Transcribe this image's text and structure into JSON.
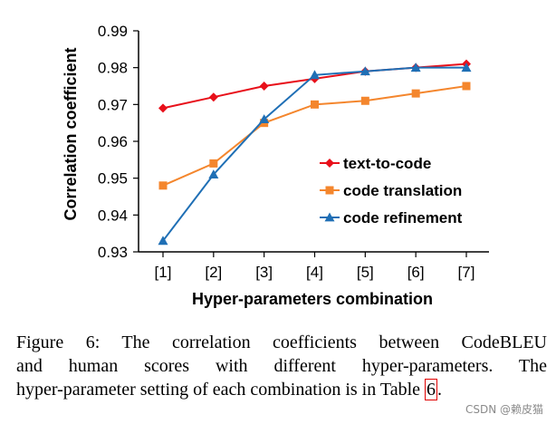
{
  "chart_data": {
    "type": "line",
    "categories": [
      "[1]",
      "[2]",
      "[3]",
      "[4]",
      "[5]",
      "[6]",
      "[7]"
    ],
    "series": [
      {
        "name": "text-to-code",
        "color": "#e8101a",
        "marker": "diamond",
        "values": [
          0.969,
          0.972,
          0.975,
          0.977,
          0.979,
          0.98,
          0.981
        ]
      },
      {
        "name": "code translation",
        "color": "#f4862d",
        "marker": "square",
        "values": [
          0.948,
          0.954,
          0.965,
          0.97,
          0.971,
          0.973,
          0.975
        ]
      },
      {
        "name": "code refinement",
        "color": "#1f6fb5",
        "marker": "triangle",
        "values": [
          0.933,
          0.951,
          0.966,
          0.978,
          0.979,
          0.98,
          0.98
        ]
      }
    ],
    "yticks": [
      "0.93",
      "0.94",
      "0.95",
      "0.96",
      "0.97",
      "0.98",
      "0.99"
    ],
    "ylim": [
      0.93,
      0.99
    ],
    "xlabel": "Hyper-parameters combination",
    "ylabel": "Correlation coefficient",
    "legend_position": "bottom-right",
    "grid": false
  },
  "caption": {
    "line1": "Figure 6: The correlation coefficients between CodeBLEU",
    "line2": "and human scores with different hyper-parameters. The",
    "line3_prefix": "hyper-parameter setting of each combination is in Table ",
    "line3_ref": "6",
    "line3_suffix": "."
  },
  "watermark": "CSDN @赖皮猫"
}
